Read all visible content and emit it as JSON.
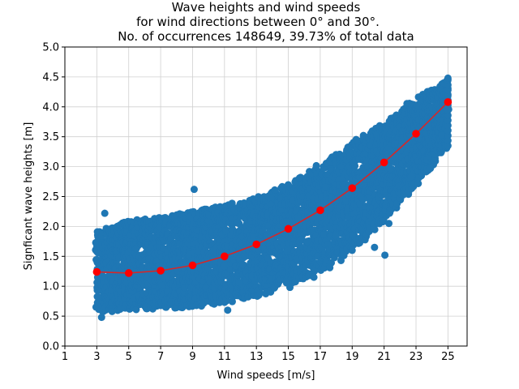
{
  "chart_data": {
    "type": "scatter",
    "title_lines": [
      "Wave heights and wind speeds",
      "for wind directions between 0° and 30°.",
      "No. of occurrences 148649, 39.73% of total data"
    ],
    "xlabel": "Wind speeds [m/s]",
    "ylabel": "Signficant wave heights [m]",
    "xlim": [
      1,
      26.2
    ],
    "ylim": [
      0,
      5
    ],
    "xticks": [
      1,
      3,
      5,
      7,
      9,
      11,
      13,
      15,
      17,
      19,
      21,
      23,
      25
    ],
    "yticks": [
      0.0,
      0.5,
      1.0,
      1.5,
      2.0,
      2.5,
      3.0,
      3.5,
      4.0,
      4.5,
      5.0
    ],
    "grid": true,
    "colors": {
      "scatter": "#1f77b4",
      "fit_line": "#d62728",
      "fit_marker": "#ff0000",
      "grid": "#d0d0d0"
    },
    "scatter_band": [
      {
        "x": 3,
        "low": 0.55,
        "high": 1.95
      },
      {
        "x": 5,
        "low": 0.6,
        "high": 2.1
      },
      {
        "x": 7,
        "low": 0.62,
        "high": 2.15
      },
      {
        "x": 9,
        "low": 0.65,
        "high": 2.25
      },
      {
        "x": 11,
        "low": 0.72,
        "high": 2.35
      },
      {
        "x": 13,
        "low": 0.82,
        "high": 2.5
      },
      {
        "x": 15,
        "low": 1.0,
        "high": 2.7
      },
      {
        "x": 17,
        "low": 1.25,
        "high": 3.05
      },
      {
        "x": 19,
        "low": 1.6,
        "high": 3.4
      },
      {
        "x": 21,
        "low": 2.1,
        "high": 3.75
      },
      {
        "x": 23,
        "low": 2.7,
        "high": 4.15
      },
      {
        "x": 25,
        "low": 3.35,
        "high": 4.45
      }
    ],
    "scatter_outliers": [
      {
        "x": 9.1,
        "y": 2.62
      },
      {
        "x": 11.2,
        "y": 0.6
      },
      {
        "x": 3.5,
        "y": 2.22
      },
      {
        "x": 21.3,
        "y": 2.05
      },
      {
        "x": 21.05,
        "y": 1.52
      },
      {
        "x": 22.7,
        "y": 2.83
      },
      {
        "x": 23.9,
        "y": 2.97
      },
      {
        "x": 24.6,
        "y": 3.53
      },
      {
        "x": 18.3,
        "y": 1.43
      },
      {
        "x": 19.0,
        "y": 1.6
      },
      {
        "x": 20.4,
        "y": 1.65
      },
      {
        "x": 17.6,
        "y": 1.31
      },
      {
        "x": 15.1,
        "y": 0.98
      },
      {
        "x": 16.6,
        "y": 1.15
      },
      {
        "x": 3.3,
        "y": 0.48
      },
      {
        "x": 25.0,
        "y": 4.48
      }
    ],
    "fit_series": {
      "x": [
        3,
        5,
        7,
        9,
        11,
        13,
        15,
        17,
        19,
        21,
        23,
        25
      ],
      "y": [
        1.24,
        1.22,
        1.26,
        1.35,
        1.5,
        1.7,
        1.96,
        2.27,
        2.64,
        3.07,
        3.55,
        4.08
      ]
    }
  }
}
